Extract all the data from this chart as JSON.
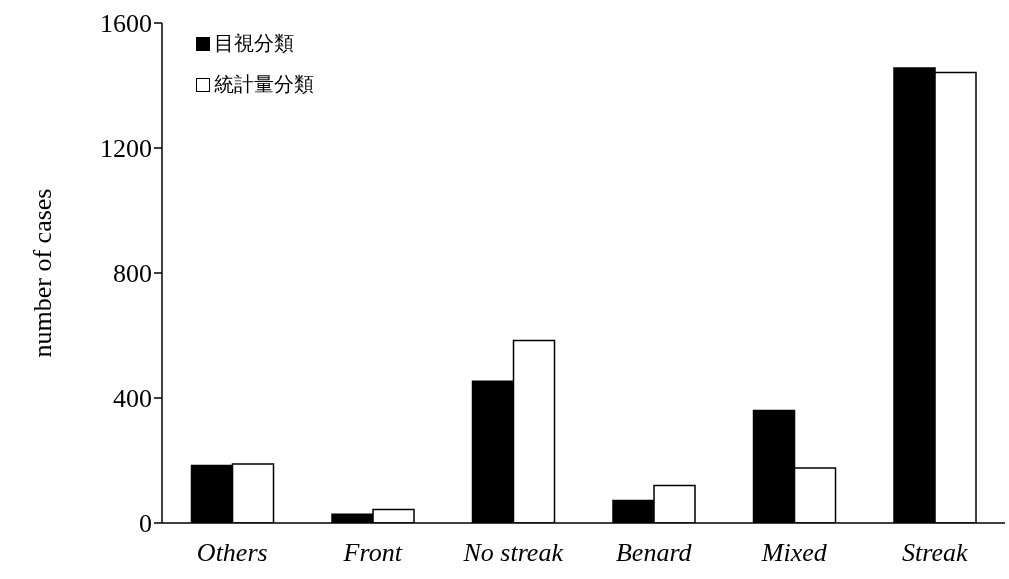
{
  "chart_data": {
    "type": "bar",
    "ylabel": "number of cases",
    "categories": [
      "Others",
      "Front",
      "No streak",
      "Benard",
      "Mixed",
      "Streak"
    ],
    "series": [
      {
        "name": "目視分類",
        "color": "#000000",
        "values": [
          184,
          28,
          454,
          72,
          360,
          1456
        ]
      },
      {
        "name": "統計量分類",
        "color": "#ffffff",
        "values": [
          189,
          43,
          584,
          120,
          176,
          1442
        ]
      }
    ],
    "ylim": [
      0,
      1600
    ],
    "yticks": [
      0,
      400,
      800,
      1200,
      1600
    ],
    "grid": false,
    "legend": "top left"
  }
}
